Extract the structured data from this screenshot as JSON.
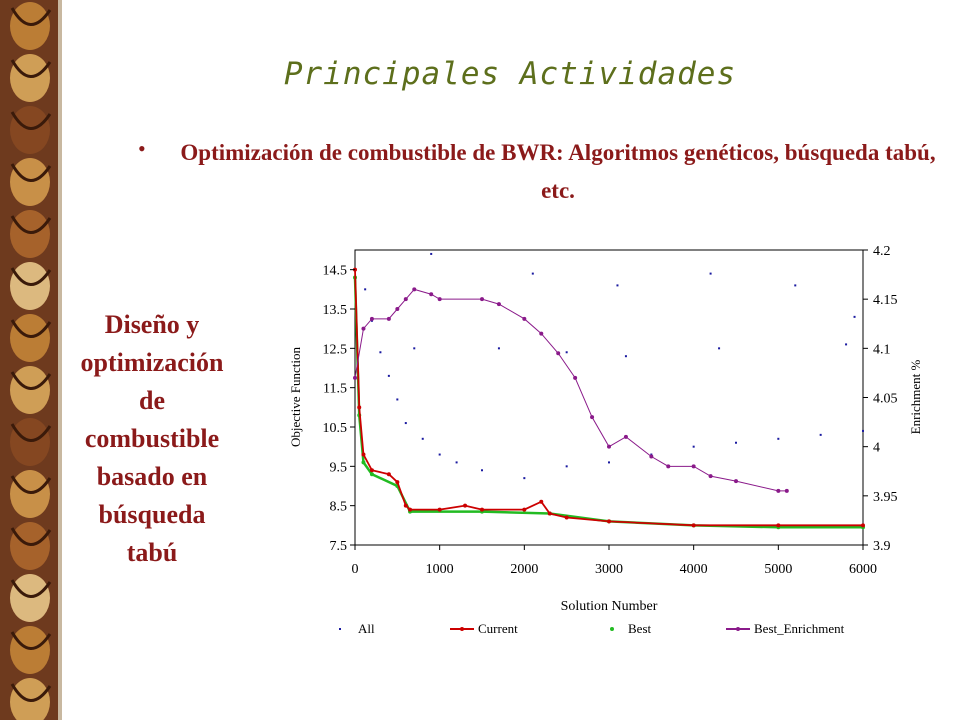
{
  "slide": {
    "title": "Principales Actividades",
    "bullet": "Optimización de combustible de BWR: Algoritmos genéticos, búsqueda tabú, etc.",
    "side_text_lines": [
      "Diseño y",
      "optimización",
      "de",
      "combustible",
      "basado en",
      "búsqueda",
      "tabú"
    ],
    "colors": {
      "title": "#5d6f1c",
      "text": "#8b1a1a"
    }
  },
  "chart_data": {
    "type": "scatter",
    "xlabel": "Solution Number",
    "ylabel": "Objective Function",
    "y2label": "Enrichment %",
    "xlim": [
      0,
      6000
    ],
    "ylim": [
      7.5,
      15
    ],
    "y2lim": [
      3.9,
      4.2
    ],
    "x_ticks": [
      "0",
      "1000",
      "2000",
      "3000",
      "4000",
      "5000",
      "6000"
    ],
    "y_ticks": [
      "7.5",
      "8.5",
      "9.5",
      "10.5",
      "11.5",
      "12.5",
      "13.5",
      "14.5"
    ],
    "y2_ticks": [
      "3.9",
      "3.95",
      "4",
      "4.05",
      "4.1",
      "4.15",
      "4.2"
    ],
    "legend_position": "bottom",
    "series": [
      {
        "name": "All",
        "color": "#1a1aa0",
        "points": [
          [
            120,
            14.0
          ],
          [
            200,
            13.2
          ],
          [
            300,
            12.4
          ],
          [
            400,
            11.8
          ],
          [
            500,
            11.2
          ],
          [
            600,
            10.6
          ],
          [
            800,
            10.2
          ],
          [
            1000,
            9.8
          ],
          [
            1200,
            9.6
          ],
          [
            1500,
            9.4
          ],
          [
            2000,
            9.2
          ],
          [
            2500,
            9.5
          ],
          [
            3000,
            9.6
          ],
          [
            3500,
            9.8
          ],
          [
            4000,
            10.0
          ],
          [
            4500,
            10.1
          ],
          [
            5000,
            10.2
          ],
          [
            5500,
            10.3
          ],
          [
            6000,
            10.4
          ],
          [
            700,
            12.5
          ],
          [
            1700,
            12.5
          ],
          [
            2500,
            12.4
          ],
          [
            3200,
            12.3
          ],
          [
            4300,
            12.5
          ],
          [
            5800,
            12.6
          ],
          [
            900,
            14.9
          ],
          [
            2100,
            14.4
          ],
          [
            3100,
            14.1
          ],
          [
            4200,
            14.4
          ],
          [
            5200,
            14.1
          ],
          [
            5900,
            13.3
          ]
        ]
      },
      {
        "name": "Current",
        "color": "#cc0000",
        "points": [
          [
            0,
            14.5
          ],
          [
            50,
            11.0
          ],
          [
            100,
            9.8
          ],
          [
            200,
            9.4
          ],
          [
            400,
            9.3
          ],
          [
            500,
            9.1
          ],
          [
            600,
            8.5
          ],
          [
            650,
            8.4
          ],
          [
            1000,
            8.4
          ],
          [
            1300,
            8.5
          ],
          [
            1500,
            8.4
          ],
          [
            2000,
            8.4
          ],
          [
            2200,
            8.6
          ],
          [
            2300,
            8.3
          ],
          [
            2500,
            8.2
          ],
          [
            3000,
            8.1
          ],
          [
            4000,
            8.0
          ],
          [
            5000,
            8.0
          ],
          [
            6000,
            8.0
          ]
        ]
      },
      {
        "name": "Best",
        "color": "#22bb22",
        "points": [
          [
            0,
            14.3
          ],
          [
            50,
            10.8
          ],
          [
            100,
            9.6
          ],
          [
            200,
            9.3
          ],
          [
            500,
            9.0
          ],
          [
            650,
            8.35
          ],
          [
            1500,
            8.35
          ],
          [
            2300,
            8.3
          ],
          [
            3000,
            8.1
          ],
          [
            4000,
            8.0
          ],
          [
            5000,
            7.95
          ],
          [
            6000,
            7.95
          ]
        ]
      },
      {
        "name": "Best_Enrichment",
        "color": "#8a1a8a",
        "points": [
          [
            0,
            4.07
          ],
          [
            100,
            4.12
          ],
          [
            200,
            4.13
          ],
          [
            400,
            4.13
          ],
          [
            500,
            4.14
          ],
          [
            600,
            4.15
          ],
          [
            700,
            4.16
          ],
          [
            900,
            4.155
          ],
          [
            1000,
            4.15
          ],
          [
            1500,
            4.15
          ],
          [
            1700,
            4.145
          ],
          [
            2000,
            4.13
          ],
          [
            2200,
            4.115
          ],
          [
            2400,
            4.095
          ],
          [
            2600,
            4.07
          ],
          [
            2800,
            4.03
          ],
          [
            3000,
            4.0
          ],
          [
            3200,
            4.01
          ],
          [
            3500,
            3.99
          ],
          [
            3700,
            3.98
          ],
          [
            4000,
            3.98
          ],
          [
            4200,
            3.97
          ],
          [
            4500,
            3.965
          ],
          [
            5000,
            3.955
          ],
          [
            5100,
            3.955
          ]
        ]
      }
    ]
  }
}
